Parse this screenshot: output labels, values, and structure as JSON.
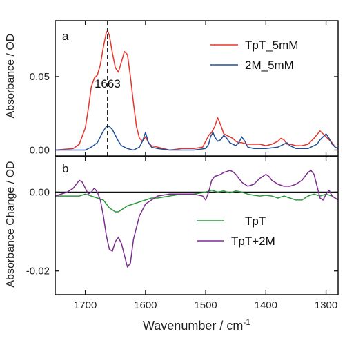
{
  "chart_data": [
    {
      "panel_label": "a",
      "type": "line",
      "ylabel": "Absorbance / OD",
      "xlim": [
        1750,
        1280
      ],
      "x_reversed": true,
      "ylim": [
        -0.004,
        0.088
      ],
      "yticks": [
        0.0,
        0.05
      ],
      "ytick_labels": [
        "0.00",
        "0.05"
      ],
      "grid": false,
      "legend": "top-right",
      "annotations": [
        {
          "text": "1663",
          "x": 1663,
          "y": 0.048,
          "line": "dashed-vertical"
        }
      ],
      "series": [
        {
          "name": "TpT_5mM",
          "color": "#e8332a",
          "x": [
            1750,
            1720,
            1710,
            1700,
            1695,
            1690,
            1685,
            1680,
            1675,
            1670,
            1665,
            1663,
            1660,
            1655,
            1650,
            1645,
            1640,
            1635,
            1630,
            1625,
            1620,
            1615,
            1610,
            1605,
            1600,
            1595,
            1590,
            1580,
            1560,
            1540,
            1520,
            1505,
            1500,
            1495,
            1490,
            1485,
            1480,
            1475,
            1470,
            1465,
            1460,
            1455,
            1450,
            1445,
            1440,
            1430,
            1420,
            1410,
            1400,
            1390,
            1380,
            1375,
            1370,
            1365,
            1360,
            1350,
            1340,
            1330,
            1320,
            1310,
            1305,
            1300,
            1295,
            1290,
            1285,
            1280
          ],
          "y": [
            0.0,
            0.001,
            0.004,
            0.015,
            0.028,
            0.043,
            0.049,
            0.051,
            0.058,
            0.07,
            0.08,
            0.081,
            0.078,
            0.066,
            0.056,
            0.053,
            0.06,
            0.067,
            0.065,
            0.05,
            0.032,
            0.016,
            0.008,
            0.006,
            0.009,
            0.005,
            0.003,
            0.002,
            0.0,
            0.001,
            0.001,
            0.002,
            0.006,
            0.01,
            0.012,
            0.016,
            0.022,
            0.017,
            0.011,
            0.01,
            0.009,
            0.008,
            0.006,
            0.005,
            0.005,
            0.004,
            0.004,
            0.004,
            0.003,
            0.004,
            0.006,
            0.008,
            0.007,
            0.004,
            0.004,
            0.003,
            0.003,
            0.004,
            0.008,
            0.013,
            0.011,
            0.009,
            0.007,
            0.005,
            0.002,
            0.001
          ]
        },
        {
          "name": "2M_5mM",
          "color": "#1f4e96",
          "x": [
            1750,
            1700,
            1690,
            1680,
            1675,
            1670,
            1665,
            1663,
            1660,
            1655,
            1650,
            1645,
            1640,
            1630,
            1620,
            1610,
            1605,
            1600,
            1595,
            1590,
            1580,
            1560,
            1520,
            1500,
            1495,
            1492,
            1488,
            1485,
            1480,
            1475,
            1470,
            1465,
            1460,
            1455,
            1450,
            1445,
            1440,
            1435,
            1430,
            1420,
            1400,
            1380,
            1370,
            1365,
            1360,
            1350,
            1330,
            1315,
            1310,
            1305,
            1300,
            1295,
            1290,
            1285,
            1280
          ],
          "y": [
            0.0,
            0.0,
            0.002,
            0.005,
            0.009,
            0.013,
            0.016,
            0.016,
            0.016,
            0.014,
            0.01,
            0.006,
            0.003,
            0.001,
            0.0,
            0.002,
            0.006,
            0.012,
            0.005,
            0.002,
            0.001,
            0.0,
            0.0,
            0.001,
            0.004,
            0.009,
            0.012,
            0.009,
            0.006,
            0.007,
            0.01,
            0.008,
            0.005,
            0.004,
            0.003,
            0.005,
            0.009,
            0.006,
            0.002,
            0.001,
            0.001,
            0.002,
            0.004,
            0.005,
            0.003,
            0.001,
            0.001,
            0.004,
            0.007,
            0.009,
            0.011,
            0.008,
            0.004,
            0.002,
            0.001
          ]
        }
      ]
    },
    {
      "panel_label": "b",
      "type": "line",
      "xlabel": "Wavenumber / cm",
      "xlabel_superscript": "-1",
      "ylabel": "Absorbance Change / OD",
      "xlim": [
        1750,
        1280
      ],
      "x_reversed": true,
      "ylim": [
        -0.026,
        0.009
      ],
      "yticks": [
        0.0,
        -0.02
      ],
      "ytick_labels": [
        "0.00",
        "-0.02"
      ],
      "xticks": [
        1700,
        1600,
        1500,
        1400,
        1300
      ],
      "xtick_labels": [
        "1700",
        "1600",
        "1500",
        "1400",
        "1300"
      ],
      "grid": false,
      "legend": "bottom-right",
      "reference_line": 0.0,
      "series": [
        {
          "name": "TpT",
          "color": "#2a9a3c",
          "x": [
            1750,
            1730,
            1710,
            1700,
            1690,
            1680,
            1670,
            1665,
            1660,
            1655,
            1650,
            1645,
            1640,
            1635,
            1630,
            1620,
            1610,
            1600,
            1590,
            1580,
            1560,
            1540,
            1520,
            1500,
            1490,
            1480,
            1470,
            1460,
            1450,
            1440,
            1430,
            1420,
            1410,
            1400,
            1390,
            1380,
            1370,
            1360,
            1350,
            1340,
            1330,
            1320,
            1310,
            1300,
            1290,
            1285,
            1280
          ],
          "y": [
            -0.001,
            -0.001,
            -0.001,
            -0.0005,
            -0.001,
            -0.0015,
            -0.002,
            -0.003,
            -0.004,
            -0.0045,
            -0.005,
            -0.005,
            -0.0045,
            -0.004,
            -0.0035,
            -0.003,
            -0.0025,
            -0.002,
            -0.0015,
            -0.0015,
            -0.001,
            -0.0005,
            -0.0005,
            0.0,
            0.0005,
            0.0,
            0.0003,
            -0.0002,
            0.0003,
            0.0,
            -0.0005,
            -0.0008,
            -0.001,
            -0.0008,
            -0.001,
            -0.0015,
            -0.001,
            -0.0015,
            -0.002,
            -0.002,
            -0.001,
            -0.0005,
            -0.001,
            -0.0005,
            -0.001,
            -0.0015,
            -0.002
          ]
        },
        {
          "name": "TpT+2M",
          "color": "#7b2d8e",
          "x": [
            1750,
            1730,
            1720,
            1710,
            1705,
            1700,
            1695,
            1690,
            1685,
            1680,
            1675,
            1670,
            1665,
            1660,
            1655,
            1650,
            1645,
            1640,
            1635,
            1630,
            1625,
            1620,
            1610,
            1600,
            1590,
            1580,
            1560,
            1540,
            1520,
            1505,
            1500,
            1495,
            1490,
            1485,
            1480,
            1475,
            1470,
            1465,
            1460,
            1455,
            1450,
            1445,
            1440,
            1430,
            1420,
            1410,
            1405,
            1400,
            1395,
            1390,
            1380,
            1370,
            1360,
            1350,
            1340,
            1330,
            1325,
            1320,
            1315,
            1310,
            1305,
            1300,
            1295,
            1290,
            1285,
            1280
          ],
          "y": [
            -0.001,
            0.0,
            0.001,
            0.003,
            0.0025,
            0.001,
            -0.0005,
            0.0,
            0.001,
            0.0,
            -0.002,
            -0.006,
            -0.011,
            -0.0145,
            -0.015,
            -0.0125,
            -0.0115,
            -0.013,
            -0.016,
            -0.019,
            -0.018,
            -0.012,
            -0.006,
            -0.003,
            -0.002,
            -0.001,
            -0.0005,
            -0.0005,
            -0.0005,
            -0.001,
            -0.002,
            0.0,
            0.003,
            0.004,
            0.0042,
            0.0045,
            0.005,
            0.0052,
            0.0055,
            0.0052,
            0.0045,
            0.0035,
            0.0025,
            0.0015,
            0.002,
            0.0035,
            0.004,
            0.0045,
            0.004,
            0.003,
            0.002,
            0.0015,
            0.0015,
            0.002,
            0.003,
            0.005,
            0.0055,
            0.0045,
            0.0015,
            -0.0015,
            -0.002,
            -0.0005,
            0.0005,
            -0.001,
            -0.0015,
            -0.002
          ]
        }
      ]
    }
  ]
}
